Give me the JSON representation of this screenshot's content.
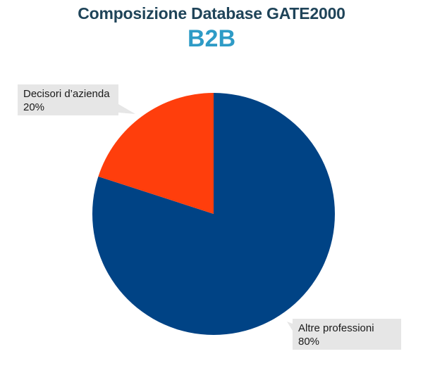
{
  "header": {
    "title": "Composizione Database GATE2000",
    "subtitle": "B2B"
  },
  "chart_data": {
    "type": "pie",
    "title": "Composizione Database GATE2000",
    "subtitle": "B2B",
    "slices": [
      {
        "label": "Altre professioni",
        "value": 80,
        "value_label": "80%",
        "color": "#004385"
      },
      {
        "label": "Decisori d’azienda",
        "value": 20,
        "value_label": "20%",
        "color": "#ff3e0c"
      }
    ],
    "start_angle_deg": 0,
    "direction": "clockwise",
    "label_style": "callout-boxes",
    "callout_color": "#e6e6e6"
  }
}
